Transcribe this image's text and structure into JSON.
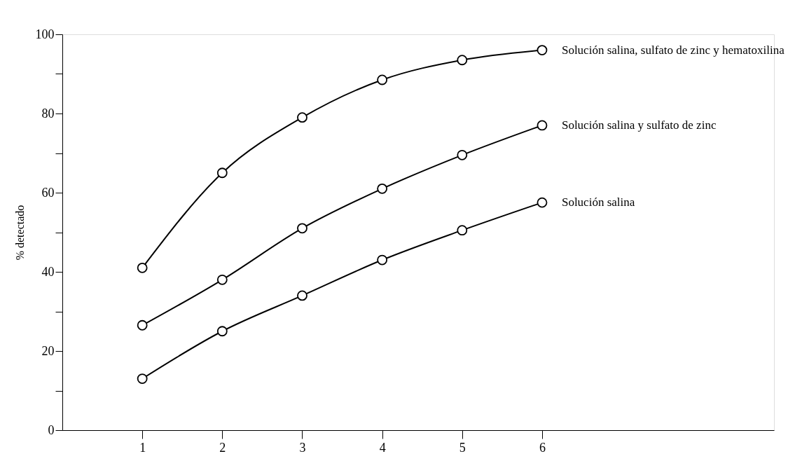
{
  "chart_data": {
    "type": "line",
    "ylabel": "% detectado",
    "x": [
      1,
      2,
      3,
      4,
      5,
      6
    ],
    "xlim": [
      0,
      8.9
    ],
    "xticks": [
      1,
      2,
      3,
      4,
      5,
      6
    ],
    "ylim": [
      0,
      100
    ],
    "yticks": [
      0,
      {
        "value": 10,
        "label": null
      },
      20,
      {
        "value": 30,
        "label": null
      },
      40,
      {
        "value": 50,
        "label": null
      },
      60,
      {
        "value": 70,
        "label": null
      },
      80,
      {
        "value": 90,
        "label": null
      },
      100
    ],
    "marker": "circle",
    "line_style": "solid",
    "grid": false,
    "legend": false,
    "series": [
      {
        "name": "Solución salina, sulfato de zinc y hematoxilina",
        "color": "#000000",
        "values": [
          41,
          65,
          79,
          88.5,
          93.5,
          96
        ]
      },
      {
        "name": "Solución salina y sulfato de zinc",
        "color": "#000000",
        "values": [
          26.5,
          38,
          51,
          61,
          69.5,
          77
        ]
      },
      {
        "name": "Solución salina",
        "color": "#000000",
        "values": [
          13,
          25,
          34,
          43,
          50.5,
          57.5
        ]
      }
    ]
  }
}
